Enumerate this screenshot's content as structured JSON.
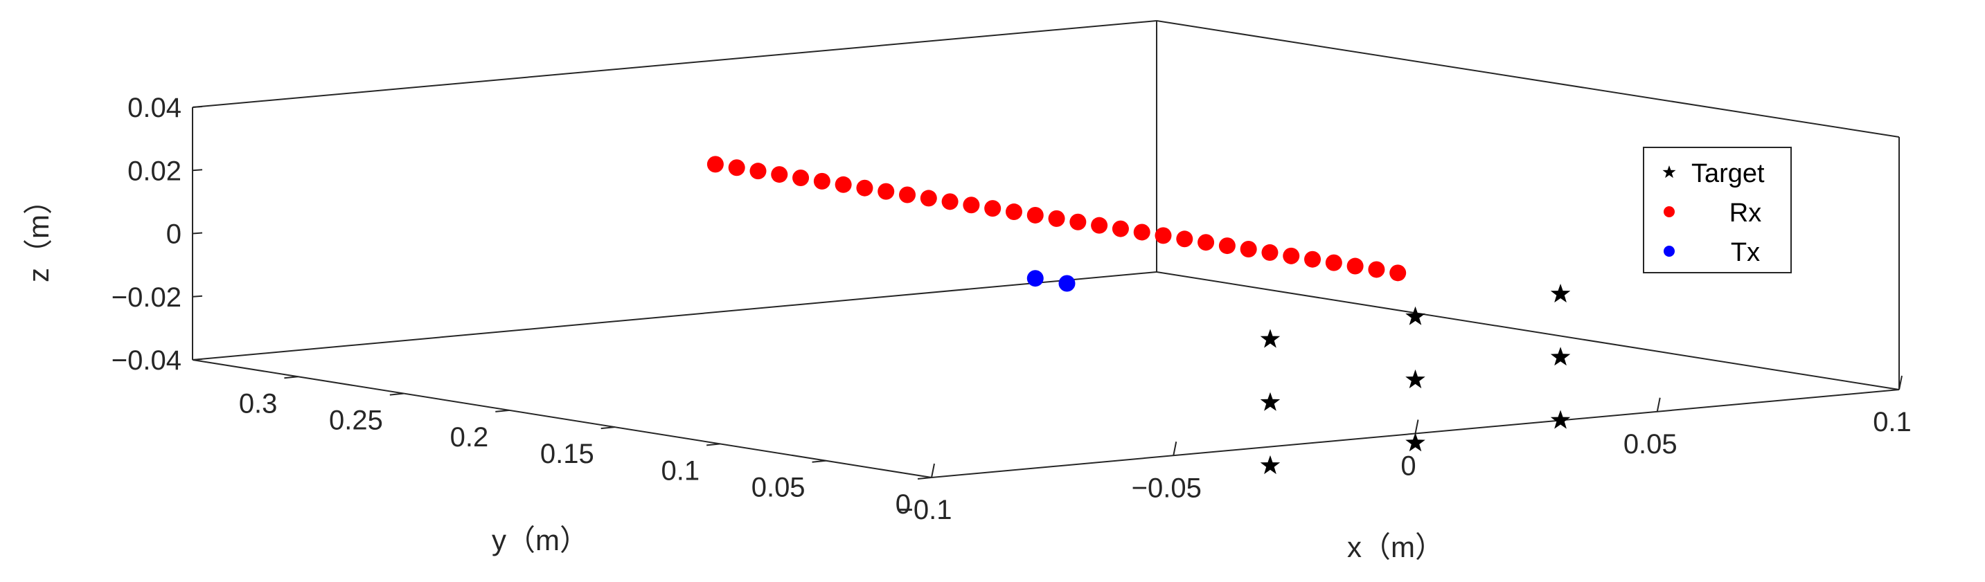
{
  "chart_data": {
    "type": "scatter",
    "dimensions": "3d",
    "xlabel": "x（m）",
    "ylabel": "y（m）",
    "zlabel": "z（m）",
    "xlim": [
      -0.1,
      0.1
    ],
    "ylim": [
      0,
      0.35
    ],
    "zlim": [
      -0.04,
      0.04
    ],
    "x_ticks": [
      "−0.1",
      "−0.05",
      "0",
      "0.05",
      "0.1"
    ],
    "y_ticks": [
      "0",
      "0.05",
      "0.1",
      "0.15",
      "0.2",
      "0.25",
      "0.3"
    ],
    "z_ticks": [
      "−0.04",
      "−0.02",
      "0",
      "0.02",
      "0.04"
    ],
    "legend_position": "top-right",
    "series": [
      {
        "name": "Target",
        "marker": "star",
        "color": "#000000",
        "points": [
          {
            "x": -0.03,
            "y": 0,
            "z": -0.006
          },
          {
            "x": 0.0,
            "y": 0,
            "z": -0.003
          },
          {
            "x": 0.03,
            "y": 0,
            "z": 0.0
          },
          {
            "x": -0.03,
            "y": 0,
            "z": -0.026
          },
          {
            "x": 0.0,
            "y": 0,
            "z": -0.023
          },
          {
            "x": 0.03,
            "y": 0,
            "z": -0.02
          },
          {
            "x": -0.03,
            "y": 0,
            "z": -0.046
          },
          {
            "x": 0.0,
            "y": 0,
            "z": -0.043
          },
          {
            "x": 0.03,
            "y": 0,
            "z": -0.04
          }
        ]
      },
      {
        "name": "Rx",
        "marker": "circle",
        "color": "#ff0000",
        "points": [
          {
            "x": 0,
            "y": 0.3315,
            "z": 0.01
          },
          {
            "x": 0,
            "y": 0.3214,
            "z": 0.01
          },
          {
            "x": 0,
            "y": 0.3113,
            "z": 0.01
          },
          {
            "x": 0,
            "y": 0.3012,
            "z": 0.01
          },
          {
            "x": 0,
            "y": 0.2911,
            "z": 0.01
          },
          {
            "x": 0,
            "y": 0.281,
            "z": 0.01
          },
          {
            "x": 0,
            "y": 0.2709,
            "z": 0.01
          },
          {
            "x": 0,
            "y": 0.2608,
            "z": 0.01
          },
          {
            "x": 0,
            "y": 0.2507,
            "z": 0.01
          },
          {
            "x": 0,
            "y": 0.2406,
            "z": 0.01
          },
          {
            "x": 0,
            "y": 0.2305,
            "z": 0.01
          },
          {
            "x": 0,
            "y": 0.2204,
            "z": 0.01
          },
          {
            "x": 0,
            "y": 0.2103,
            "z": 0.01
          },
          {
            "x": 0,
            "y": 0.2002,
            "z": 0.01
          },
          {
            "x": 0,
            "y": 0.1901,
            "z": 0.01
          },
          {
            "x": 0,
            "y": 0.18,
            "z": 0.01
          },
          {
            "x": 0,
            "y": 0.1699,
            "z": 0.01
          },
          {
            "x": 0,
            "y": 0.1598,
            "z": 0.01
          },
          {
            "x": 0,
            "y": 0.1497,
            "z": 0.01
          },
          {
            "x": 0,
            "y": 0.1396,
            "z": 0.01
          },
          {
            "x": 0,
            "y": 0.1295,
            "z": 0.01
          },
          {
            "x": 0,
            "y": 0.1194,
            "z": 0.01
          },
          {
            "x": 0,
            "y": 0.1093,
            "z": 0.01
          },
          {
            "x": 0,
            "y": 0.0992,
            "z": 0.01
          },
          {
            "x": 0,
            "y": 0.0891,
            "z": 0.01
          },
          {
            "x": 0,
            "y": 0.079,
            "z": 0.01
          },
          {
            "x": 0,
            "y": 0.0689,
            "z": 0.01
          },
          {
            "x": 0,
            "y": 0.0588,
            "z": 0.01
          },
          {
            "x": 0,
            "y": 0.0487,
            "z": 0.01
          },
          {
            "x": 0,
            "y": 0.0386,
            "z": 0.01
          },
          {
            "x": 0,
            "y": 0.0285,
            "z": 0.01
          },
          {
            "x": 0,
            "y": 0.0184,
            "z": 0.01
          },
          {
            "x": 0,
            "y": 0.0083,
            "z": 0.01
          }
        ]
      },
      {
        "name": "Tx",
        "marker": "circle",
        "color": "#0000ff",
        "points": [
          {
            "x": 0,
            "y": 0.18,
            "z": -0.01
          },
          {
            "x": 0,
            "y": 0.165,
            "z": -0.01
          }
        ]
      }
    ]
  }
}
